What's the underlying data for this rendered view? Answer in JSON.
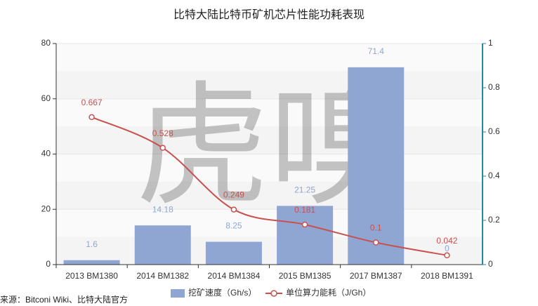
{
  "chart_data": {
    "type": "bar-line",
    "title": "比特大陆比特币矿机芯片性能功耗表现",
    "categories": [
      "2013 BM1380",
      "2014 BM1382",
      "2014 BM1384",
      "2015 BM1385",
      "2017 BM1387",
      "2018 BM1391"
    ],
    "series": [
      {
        "name": "挖矿速度（Gh/s）",
        "color": "#8fa6d3",
        "type": "bar",
        "values": [
          1.6,
          14.18,
          8.25,
          21.25,
          71.4,
          0
        ]
      },
      {
        "name": "单位算力能耗（J/Gh）",
        "color": "#c9504f",
        "type": "line",
        "axis": "y2",
        "values": [
          0.667,
          0.528,
          0.249,
          0.181,
          0.1,
          0.042
        ]
      }
    ],
    "ylim": [
      0,
      80
    ],
    "yticks": [
      0,
      20,
      40,
      60,
      80
    ],
    "y2lim": [
      0,
      1
    ],
    "y2ticks": [
      0,
      0.2,
      0.4,
      0.6,
      0.8,
      1
    ],
    "grid": true,
    "watermark": "虎嗅",
    "source": "来源：Bitconi Wiki、比特大陆官方"
  }
}
